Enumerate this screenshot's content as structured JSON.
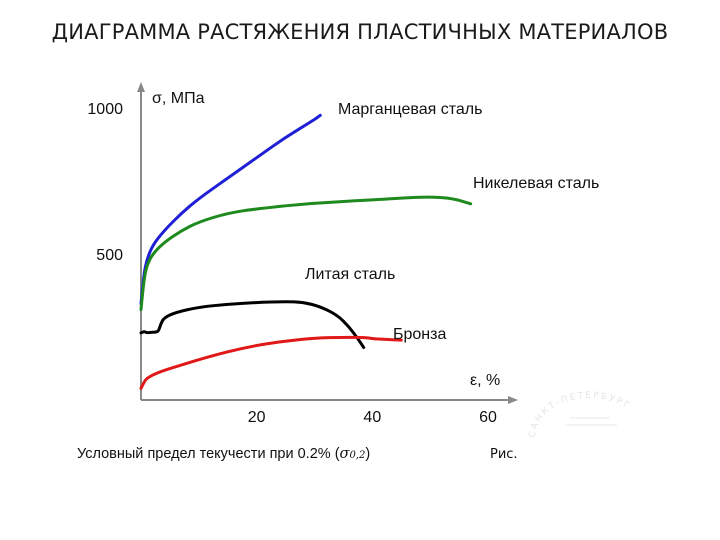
{
  "title": "ДИАГРАММА РАСТЯЖЕНИЯ ПЛАСТИЧНЫХ МАТЕРИАЛОВ",
  "caption": {
    "text": "Условный предел текучести при 0.2% (",
    "symbol": "σ",
    "subscript": "0,2",
    "close": ")"
  },
  "ris_label": "Рис.",
  "stamp_text": "САНКТ-ПЕТЕРБУРГ",
  "chart_data": {
    "type": "line",
    "xlabel": "ε, %",
    "ylabel": "σ, МПа",
    "xlim": [
      0,
      60
    ],
    "ylim": [
      0,
      1000
    ],
    "x_ticks": [
      "20",
      "40",
      "60"
    ],
    "y_ticks": [
      "500",
      "1000"
    ],
    "grid": false,
    "series": [
      {
        "name": "Марганцевая сталь",
        "color": "#1f1fd6",
        "points": [
          [
            0,
            330
          ],
          [
            0.5,
            430
          ],
          [
            1,
            480
          ],
          [
            2,
            530
          ],
          [
            4,
            580
          ],
          [
            7,
            640
          ],
          [
            10,
            690
          ],
          [
            15,
            760
          ],
          [
            20,
            830
          ],
          [
            25,
            900
          ],
          [
            30,
            960
          ],
          [
            31,
            975
          ]
        ]
      },
      {
        "name": "Никелевая сталь",
        "color": "#1e8a1e",
        "points": [
          [
            0,
            310
          ],
          [
            0.5,
            410
          ],
          [
            1,
            460
          ],
          [
            2,
            500
          ],
          [
            4,
            540
          ],
          [
            7,
            580
          ],
          [
            10,
            610
          ],
          [
            15,
            640
          ],
          [
            20,
            655
          ],
          [
            30,
            675
          ],
          [
            40,
            685
          ],
          [
            45,
            692
          ],
          [
            50,
            696
          ],
          [
            54,
            690
          ],
          [
            57,
            672
          ]
        ]
      },
      {
        "name": "Литая сталь",
        "color": "#000000",
        "points": [
          [
            0,
            230
          ],
          [
            0.6,
            235
          ],
          [
            1,
            230
          ],
          [
            2,
            232
          ],
          [
            3,
            233
          ],
          [
            3.4,
            260
          ],
          [
            4,
            282
          ],
          [
            6,
            300
          ],
          [
            10,
            318
          ],
          [
            15,
            328
          ],
          [
            20,
            334
          ],
          [
            25,
            337
          ],
          [
            28,
            335
          ],
          [
            31,
            320
          ],
          [
            34,
            290
          ],
          [
            36,
            250
          ],
          [
            37.5,
            210
          ],
          [
            38.5,
            180
          ]
        ]
      },
      {
        "name": "Бронза",
        "color": "#e01818",
        "points": [
          [
            0,
            40
          ],
          [
            0.5,
            60
          ],
          [
            1,
            75
          ],
          [
            3,
            95
          ],
          [
            7,
            120
          ],
          [
            12,
            150
          ],
          [
            18,
            180
          ],
          [
            24,
            200
          ],
          [
            30,
            212
          ],
          [
            35,
            215
          ],
          [
            39,
            214
          ],
          [
            40,
            210
          ],
          [
            42,
            208
          ],
          [
            45,
            205
          ]
        ]
      }
    ]
  }
}
